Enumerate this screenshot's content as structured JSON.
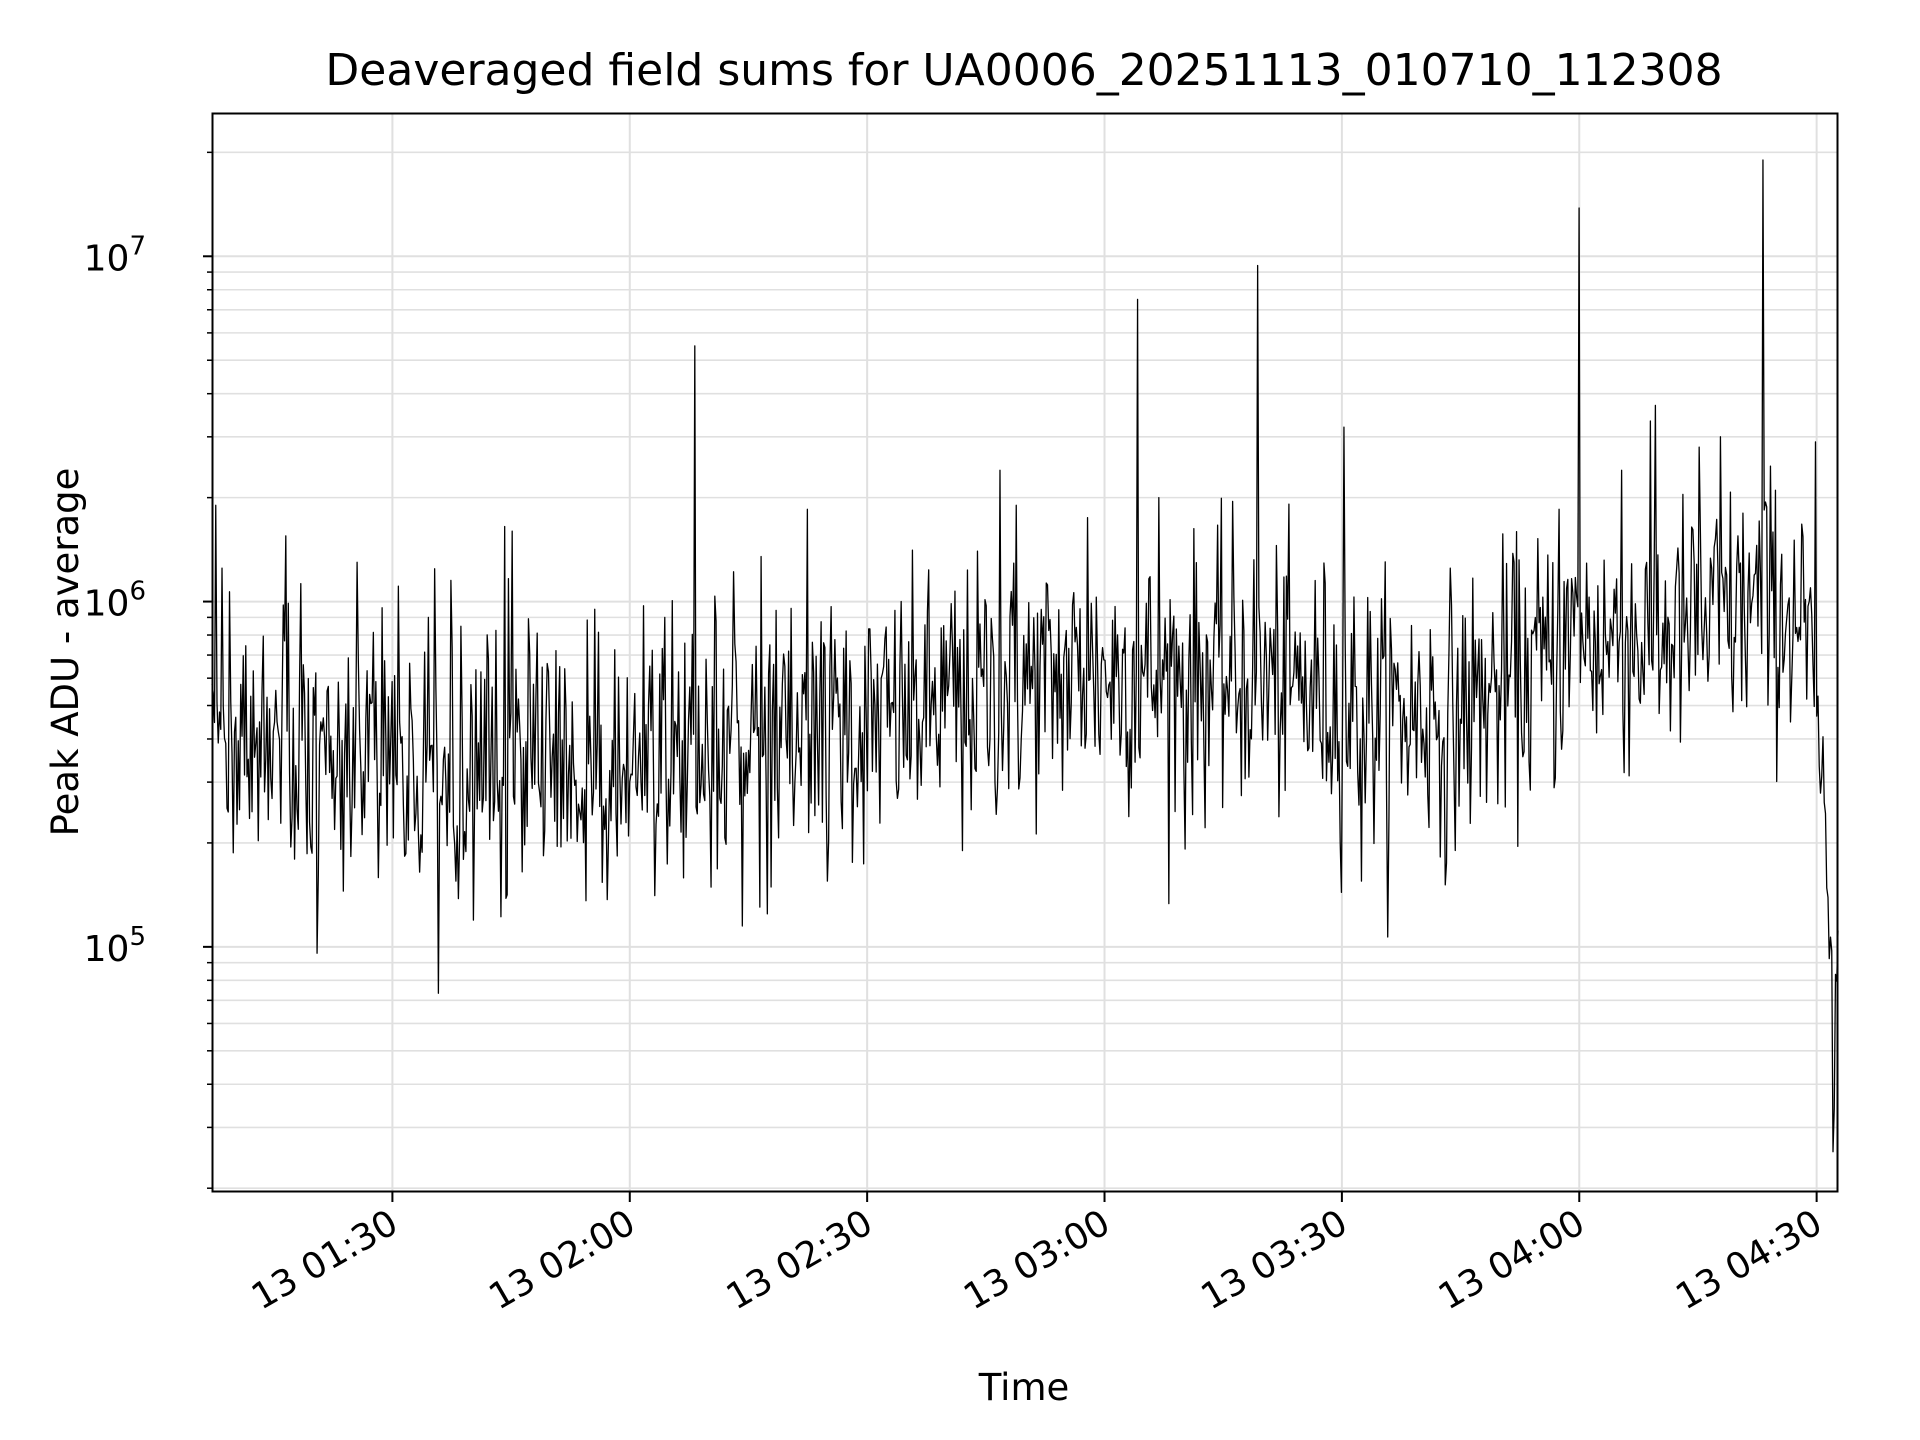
{
  "chart_data": {
    "type": "line",
    "title": "Deaveraged field sums for UA0006_20251113_010710_112308",
    "xlabel": "Time",
    "ylabel": "Peak ADU - average",
    "yscale": "log",
    "xlim_minutes": [
      67.2,
      272.7
    ],
    "ylim": [
      19500,
      26000000
    ],
    "grid": true,
    "line_color": "#000000",
    "grid_color": "#e0e0e0",
    "y_ticks": [
      {
        "value": 100000,
        "base": "10",
        "exp": "5"
      },
      {
        "value": 1000000,
        "base": "10",
        "exp": "6"
      },
      {
        "value": 10000000,
        "base": "10",
        "exp": "7"
      }
    ],
    "x_ticks": [
      {
        "minutes": 90,
        "label": "13 01:30"
      },
      {
        "minutes": 120,
        "label": "13 02:00"
      },
      {
        "minutes": 150,
        "label": "13 02:30"
      },
      {
        "minutes": 180,
        "label": "13 03:00"
      },
      {
        "minutes": 210,
        "label": "13 03:30"
      },
      {
        "minutes": 240,
        "label": "13 04:00"
      },
      {
        "minutes": 270,
        "label": "13 04:30"
      }
    ],
    "trend": [
      [
        67.2,
        380000
      ],
      [
        80,
        360000
      ],
      [
        100,
        340000
      ],
      [
        115,
        350000
      ],
      [
        130,
        380000
      ],
      [
        150,
        430000
      ],
      [
        165,
        550000
      ],
      [
        180,
        620000
      ],
      [
        200,
        600000
      ],
      [
        215,
        470000
      ],
      [
        225,
        480000
      ],
      [
        240,
        760000
      ],
      [
        255,
        820000
      ],
      [
        263,
        1000000
      ],
      [
        268,
        900000
      ],
      [
        270,
        500000
      ],
      [
        271,
        220000
      ],
      [
        271.8,
        80000
      ],
      [
        272.7,
        100000
      ]
    ],
    "spikes": [
      {
        "t": 67.6,
        "v": 1900000
      },
      {
        "t": 68.4,
        "v": 1250000
      },
      {
        "t": 76.5,
        "v": 1550000
      },
      {
        "t": 85.5,
        "v": 1300000
      },
      {
        "t": 94.5,
        "v": 900000
      },
      {
        "t": 104.2,
        "v": 1650000
      },
      {
        "t": 105.1,
        "v": 1600000
      },
      {
        "t": 115.5,
        "v": 950000
      },
      {
        "t": 124.5,
        "v": 900000
      },
      {
        "t": 128.2,
        "v": 5500000
      },
      {
        "t": 136.6,
        "v": 1350000
      },
      {
        "t": 142.4,
        "v": 1850000
      },
      {
        "t": 166.8,
        "v": 2400000
      },
      {
        "t": 168.8,
        "v": 1900000
      },
      {
        "t": 177.8,
        "v": 1750000
      },
      {
        "t": 184.1,
        "v": 7500000
      },
      {
        "t": 186.8,
        "v": 2000000
      },
      {
        "t": 196.2,
        "v": 1950000
      },
      {
        "t": 199.3,
        "v": 9400000
      },
      {
        "t": 210.2,
        "v": 3200000
      },
      {
        "t": 231.8,
        "v": 1300000
      },
      {
        "t": 237.5,
        "v": 1850000
      },
      {
        "t": 239.9,
        "v": 13800000
      },
      {
        "t": 245.3,
        "v": 2400000
      },
      {
        "t": 249.6,
        "v": 3700000
      },
      {
        "t": 255.1,
        "v": 2800000
      },
      {
        "t": 257.8,
        "v": 3000000
      },
      {
        "t": 263.2,
        "v": 19000000
      },
      {
        "t": 269.8,
        "v": 2900000
      }
    ],
    "dips": [
      {
        "t": 83.8,
        "v": 145000
      },
      {
        "t": 98.0,
        "v": 155000
      },
      {
        "t": 114.5,
        "v": 136000
      },
      {
        "t": 117.2,
        "v": 137000
      },
      {
        "t": 130.3,
        "v": 149000
      },
      {
        "t": 145.0,
        "v": 155000
      },
      {
        "t": 162.0,
        "v": 190000
      },
      {
        "t": 190.2,
        "v": 192000
      },
      {
        "t": 212.4,
        "v": 155000
      },
      {
        "t": 223.3,
        "v": 175000
      },
      {
        "t": 272.0,
        "v": 25500
      },
      {
        "t": 272.3,
        "v": 34000
      }
    ]
  }
}
